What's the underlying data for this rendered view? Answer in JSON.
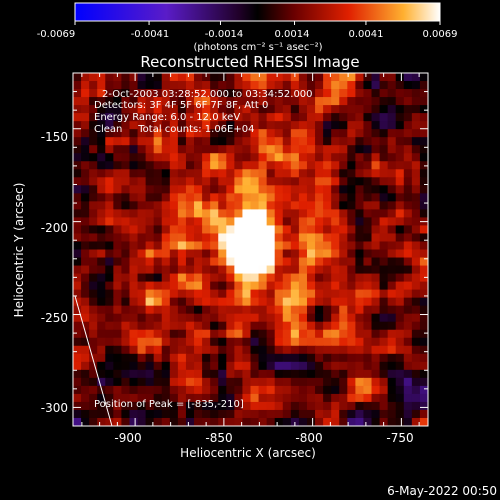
{
  "colorbar": {
    "tick_labels": [
      "-0.0069",
      "-0.0041",
      "-0.0014",
      "0.0014",
      "0.0041",
      "0.0069"
    ],
    "units_label": "(photons cm⁻² s⁻¹ asec⁻²)",
    "range": [
      -0.0069,
      0.0069
    ]
  },
  "chart_data": {
    "type": "heatmap",
    "title": "Reconstructed RHESSI Image",
    "xlabel": "Heliocentric X (arcsec)",
    "ylabel": "Heliocentric Y (arcsec)",
    "xlim": [
      -935,
      -735
    ],
    "ylim": [
      -310,
      -120
    ],
    "x_ticks": [
      -900,
      -850,
      -800,
      -750
    ],
    "y_ticks": [
      -150,
      -200,
      -250,
      -300
    ],
    "peak_position": [
      -835,
      -210
    ],
    "annotations": [
      "2-Oct-2003 03:28:52.000 to 03:34:52.000",
      "Detectors: 3F 4F 5F 6F 7F 8F, Att 0",
      "Energy Range: 6.0 - 12.0 keV",
      "Clean     Total counts: 1.06E+04",
      "Position of Peak = [-835,-210]"
    ],
    "grid": false,
    "colormap": "RHESSI blue-white-red"
  },
  "footer": {
    "date_stamp": "6-May-2022 00:50"
  }
}
